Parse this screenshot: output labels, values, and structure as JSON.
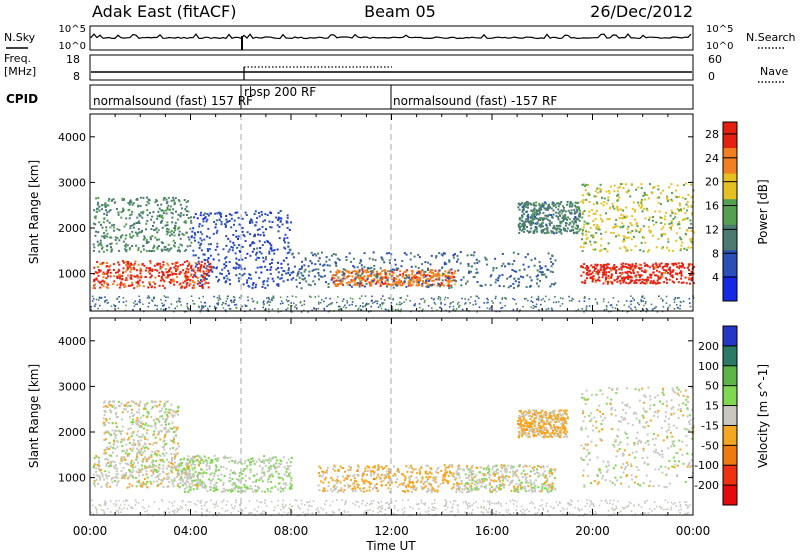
{
  "header": {
    "site": "Adak East (fitACF)",
    "beam": "Beam 05",
    "date": "26/Dec/2012"
  },
  "side_labels": {
    "nsky": "N.Sky",
    "nsearch": "N.Search",
    "freq_line1": "Freq.",
    "freq_line2": "[MHz]",
    "nave": "Nave",
    "cpid": "CPID"
  },
  "mini_axes": {
    "nsky_ticks": [
      "10^5",
      "10^0"
    ],
    "nsearch_ticks": [
      "10^5",
      "10^0"
    ],
    "freq_ticks": [
      "18",
      "8"
    ],
    "nave_ticks": [
      "60",
      "0"
    ]
  },
  "cpid_segments": [
    {
      "label": "normalsound (fast) 157 RF",
      "start_hour": 0,
      "end_hour": 6
    },
    {
      "label": "rbsp 200 RF",
      "start_hour": 6,
      "end_hour": 12
    },
    {
      "label": "normalsound (fast) -157 RF",
      "start_hour": 12,
      "end_hour": 24
    }
  ],
  "chart_data": [
    {
      "type": "heatmap",
      "title": "",
      "xlabel": "Time UT",
      "ylabel": "Slant Range [km]",
      "xlim": [
        0,
        24
      ],
      "ylim": [
        180,
        4500
      ],
      "x_ticks": [
        "00:00",
        "04:00",
        "08:00",
        "12:00",
        "16:00",
        "20:00",
        "00:00"
      ],
      "y_ticks": [
        1000,
        2000,
        3000,
        4000
      ],
      "colorbar": {
        "label": "Power [dB]",
        "ticks": [
          4,
          8,
          12,
          16,
          20,
          24,
          28
        ],
        "range": [
          0,
          30
        ],
        "colors": [
          "#1428e6",
          "#2a4fb8",
          "#4a7a70",
          "#52a050",
          "#e6c020",
          "#f08020",
          "#e62010"
        ]
      },
      "echo_regions": [
        {
          "hours": [
            0.1,
            4.8
          ],
          "range_km": [
            700,
            1300
          ],
          "level": 27
        },
        {
          "hours": [
            0.1,
            4.0
          ],
          "range_km": [
            1500,
            2700
          ],
          "level": 12
        },
        {
          "hours": [
            4.0,
            8.0
          ],
          "range_km": [
            700,
            2400
          ],
          "level": 6
        },
        {
          "hours": [
            9.6,
            14.5
          ],
          "range_km": [
            750,
            1100
          ],
          "level": 24
        },
        {
          "hours": [
            8.0,
            18.5
          ],
          "range_km": [
            700,
            1500
          ],
          "level": 9
        },
        {
          "hours": [
            17.0,
            19.5
          ],
          "range_km": [
            1900,
            2600
          ],
          "level": 11
        },
        {
          "hours": [
            19.5,
            24.0
          ],
          "range_km": [
            800,
            1250
          ],
          "level": 28
        },
        {
          "hours": [
            19.5,
            24.0
          ],
          "range_km": [
            1500,
            3000
          ],
          "level": 18
        }
      ]
    },
    {
      "type": "heatmap",
      "title": "",
      "xlabel": "Time UT",
      "ylabel": "Slant Range [km]",
      "xlim": [
        0,
        24
      ],
      "ylim": [
        180,
        4500
      ],
      "x_ticks": [
        "00:00",
        "04:00",
        "08:00",
        "12:00",
        "16:00",
        "20:00",
        "00:00"
      ],
      "y_ticks": [
        1000,
        2000,
        3000,
        4000
      ],
      "colorbar": {
        "label": "Velocity [m s^-1]",
        "ticks": [
          200,
          100,
          50,
          15,
          -15,
          -50,
          -100,
          -200
        ],
        "range": [
          -250,
          250
        ],
        "colors": [
          "#2438c8",
          "#2a7a66",
          "#5bb648",
          "#7ed850",
          "#c8c8c0",
          "#f5a623",
          "#f07a10",
          "#f03010",
          "#e60a0a"
        ]
      },
      "echo_regions": [
        {
          "hours": [
            0.1,
            4.5
          ],
          "range_km": [
            800,
            1500
          ],
          "level": 0
        },
        {
          "hours": [
            0.5,
            3.5
          ],
          "range_km": [
            1500,
            2700
          ],
          "level": 0
        },
        {
          "hours": [
            3.5,
            8.0
          ],
          "range_km": [
            700,
            1500
          ],
          "level": 30
        },
        {
          "hours": [
            9.0,
            14.5
          ],
          "range_km": [
            700,
            1300
          ],
          "level": -40
        },
        {
          "hours": [
            14.5,
            18.5
          ],
          "range_km": [
            700,
            1300
          ],
          "level": 0
        },
        {
          "hours": [
            17.0,
            19.0
          ],
          "range_km": [
            1900,
            2500
          ],
          "level": -40
        },
        {
          "hours": [
            19.5,
            24.0
          ],
          "range_km": [
            800,
            3000
          ],
          "level": 0
        }
      ]
    }
  ]
}
